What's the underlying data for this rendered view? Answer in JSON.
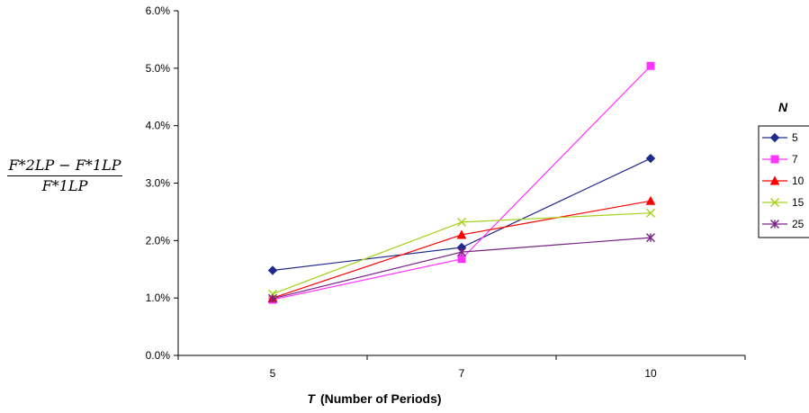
{
  "chart_data": {
    "type": "line",
    "x": [
      5,
      7,
      10
    ],
    "xlabel_italic": "T",
    "xlabel_rest": "(Number of Periods)",
    "ylabel": {
      "numerator": "F*2LP − F*1LP",
      "denominator": "F*1LP"
    },
    "ylim": [
      0,
      0.06
    ],
    "yticks": [
      "0.0%",
      "1.0%",
      "2.0%",
      "3.0%",
      "4.0%",
      "5.0%",
      "6.0%"
    ],
    "xticks": [
      "5",
      "7",
      "10"
    ],
    "grid": false,
    "legend": {
      "title": "N",
      "placement": "right"
    },
    "series": [
      {
        "name": "5",
        "values": [
          0.0148,
          0.0188,
          0.0343
        ],
        "color": "#1F2A8C",
        "marker": "diamond"
      },
      {
        "name": "7",
        "values": [
          0.0097,
          0.0168,
          0.0504
        ],
        "color": "#FF33FF",
        "marker": "square"
      },
      {
        "name": "10",
        "values": [
          0.01,
          0.021,
          0.0269
        ],
        "color": "#FF0000",
        "marker": "triangle"
      },
      {
        "name": "15",
        "values": [
          0.0107,
          0.0232,
          0.0248
        ],
        "color": "#A6D11A",
        "marker": "x"
      },
      {
        "name": "25",
        "values": [
          0.0099,
          0.018,
          0.0205
        ],
        "color": "#7A2387",
        "marker": "star"
      }
    ]
  }
}
